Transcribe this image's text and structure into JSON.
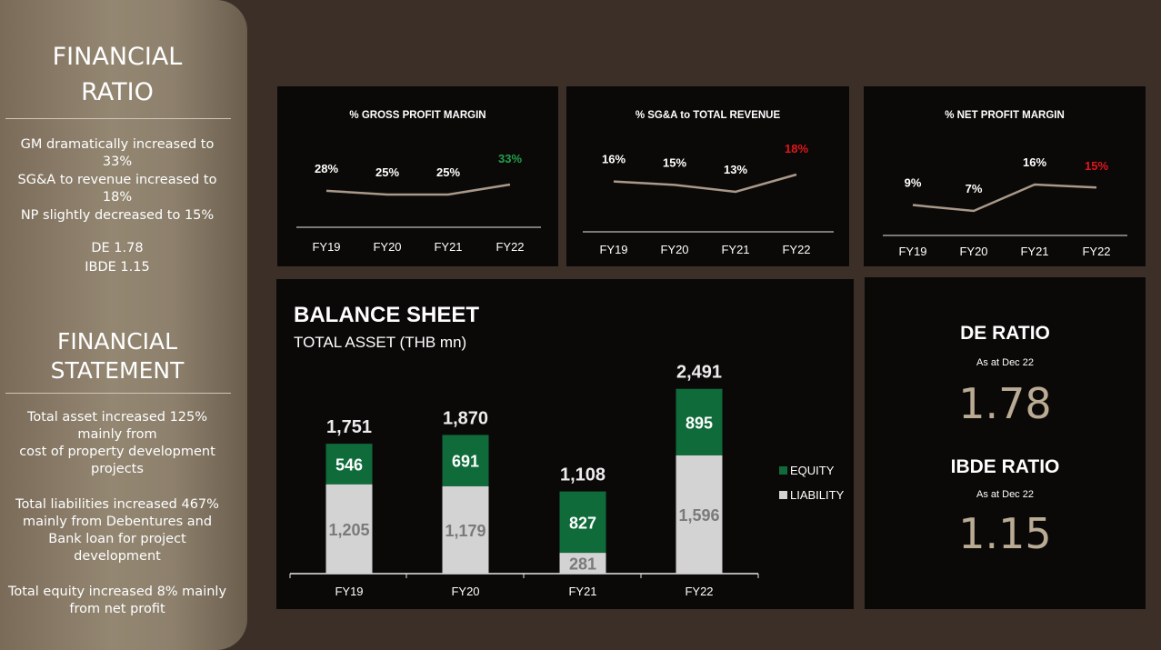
{
  "sidebar": {
    "ratio_title_1": "FINANCIAL",
    "ratio_title_2": "RATIO",
    "ratio_lines": [
      "GM dramatically increased to",
      "33%",
      "SG&A to revenue increased to",
      "18%",
      "NP slightly decreased to 15%"
    ],
    "de_line": "DE 1.78",
    "ibde_line": "IBDE 1.15",
    "stmt_title_1": "FINANCIAL",
    "stmt_title_2": "STATEMENT",
    "stmt_lines": [
      "Total asset increased  125%",
      "mainly from",
      "cost of property development",
      "projects",
      "Total liabilities increased 467%",
      "mainly from Debentures and",
      "Bank loan for project",
      "development",
      "Total equity increased 8% mainly",
      "from net profit"
    ]
  },
  "colors": {
    "equity": "#0f6b3a",
    "liability": "#d3d3d3",
    "line": "#a8998a",
    "up": "#22a04a",
    "down": "#e0161d",
    "ratio_value": "#b9ab94"
  },
  "chart_data": [
    {
      "type": "line",
      "title": "% GROSS PROFIT MARGIN",
      "categories": [
        "FY19",
        "FY20",
        "FY21",
        "FY22"
      ],
      "values": [
        28,
        25,
        25,
        33
      ],
      "labels": [
        "28%",
        "25%",
        "25%",
        "33%"
      ],
      "label_colors": [
        "#ffffff",
        "#ffffff",
        "#ffffff",
        "#22a04a"
      ]
    },
    {
      "type": "line",
      "title": "% SG&A to TOTAL REVENUE",
      "categories": [
        "FY19",
        "FY20",
        "FY21",
        "FY22"
      ],
      "values": [
        16,
        15,
        13,
        18
      ],
      "labels": [
        "16%",
        "15%",
        "13%",
        "18%"
      ],
      "label_colors": [
        "#ffffff",
        "#ffffff",
        "#ffffff",
        "#e0161d"
      ]
    },
    {
      "type": "line",
      "title": "% NET PROFIT MARGIN",
      "categories": [
        "FY19",
        "FY20",
        "FY21",
        "FY22"
      ],
      "values": [
        9,
        7,
        16,
        15
      ],
      "labels": [
        "9%",
        "7%",
        "16%",
        "15%"
      ],
      "label_colors": [
        "#ffffff",
        "#ffffff",
        "#ffffff",
        "#e0161d"
      ]
    },
    {
      "type": "bar",
      "stacked": true,
      "title": "BALANCE SHEET",
      "subtitle": "TOTAL ASSET (THB mn)",
      "categories": [
        "FY19",
        "FY20",
        "FY21",
        "FY22"
      ],
      "series": [
        {
          "name": "LIABILITY",
          "values": [
            1205,
            1179,
            281,
            1596
          ],
          "labels": [
            "1,205",
            "1,179",
            "281",
            "1,596"
          ]
        },
        {
          "name": "EQUITY",
          "values": [
            546,
            691,
            827,
            895
          ],
          "labels": [
            "546",
            "691",
            "827",
            "895"
          ]
        }
      ],
      "totals": [
        1751,
        1870,
        1108,
        2491
      ],
      "total_labels": [
        "1,751",
        "1,870",
        "1,108",
        "2,491"
      ],
      "legend": [
        "EQUITY",
        "LIABILITY"
      ],
      "legend_position": "right"
    }
  ],
  "ratios": {
    "de_title": "DE RATIO",
    "de_sub": "As at Dec 22",
    "de_value": "1.78",
    "ibde_title": "IBDE RATIO",
    "ibde_sub": "As at Dec 22",
    "ibde_value": "1.15"
  }
}
